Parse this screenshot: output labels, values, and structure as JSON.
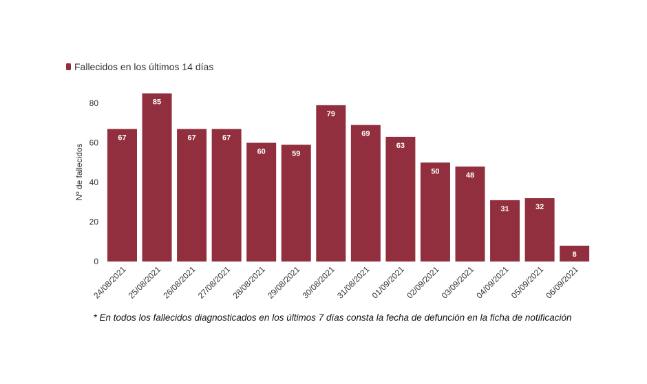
{
  "chart_data": {
    "type": "bar",
    "categories": [
      "24/08/2021",
      "25/08/2021",
      "26/08/2021",
      "27/08/2021",
      "28/08/2021",
      "29/08/2021",
      "30/08/2021",
      "31/08/2021",
      "01/09/2021",
      "02/09/2021",
      "03/09/2021",
      "04/09/2021",
      "05/09/2021",
      "06/09/2021"
    ],
    "series": [
      {
        "name": "Fallecidos en los últimos 14 días",
        "values": [
          67,
          85,
          67,
          67,
          60,
          59,
          79,
          69,
          63,
          50,
          48,
          31,
          32,
          8
        ]
      }
    ],
    "ylabel": "Nº de fallecidos",
    "xlabel": "",
    "ylim": [
      0,
      90
    ],
    "yticks": [
      0,
      20,
      40,
      60,
      80
    ],
    "grid": false,
    "legend": "top-left",
    "color": "#922f3e",
    "footnote": "* En todos los fallecidos diagnosticados en los últimos 7 días consta la fecha de defunción en la ficha de notificación"
  }
}
